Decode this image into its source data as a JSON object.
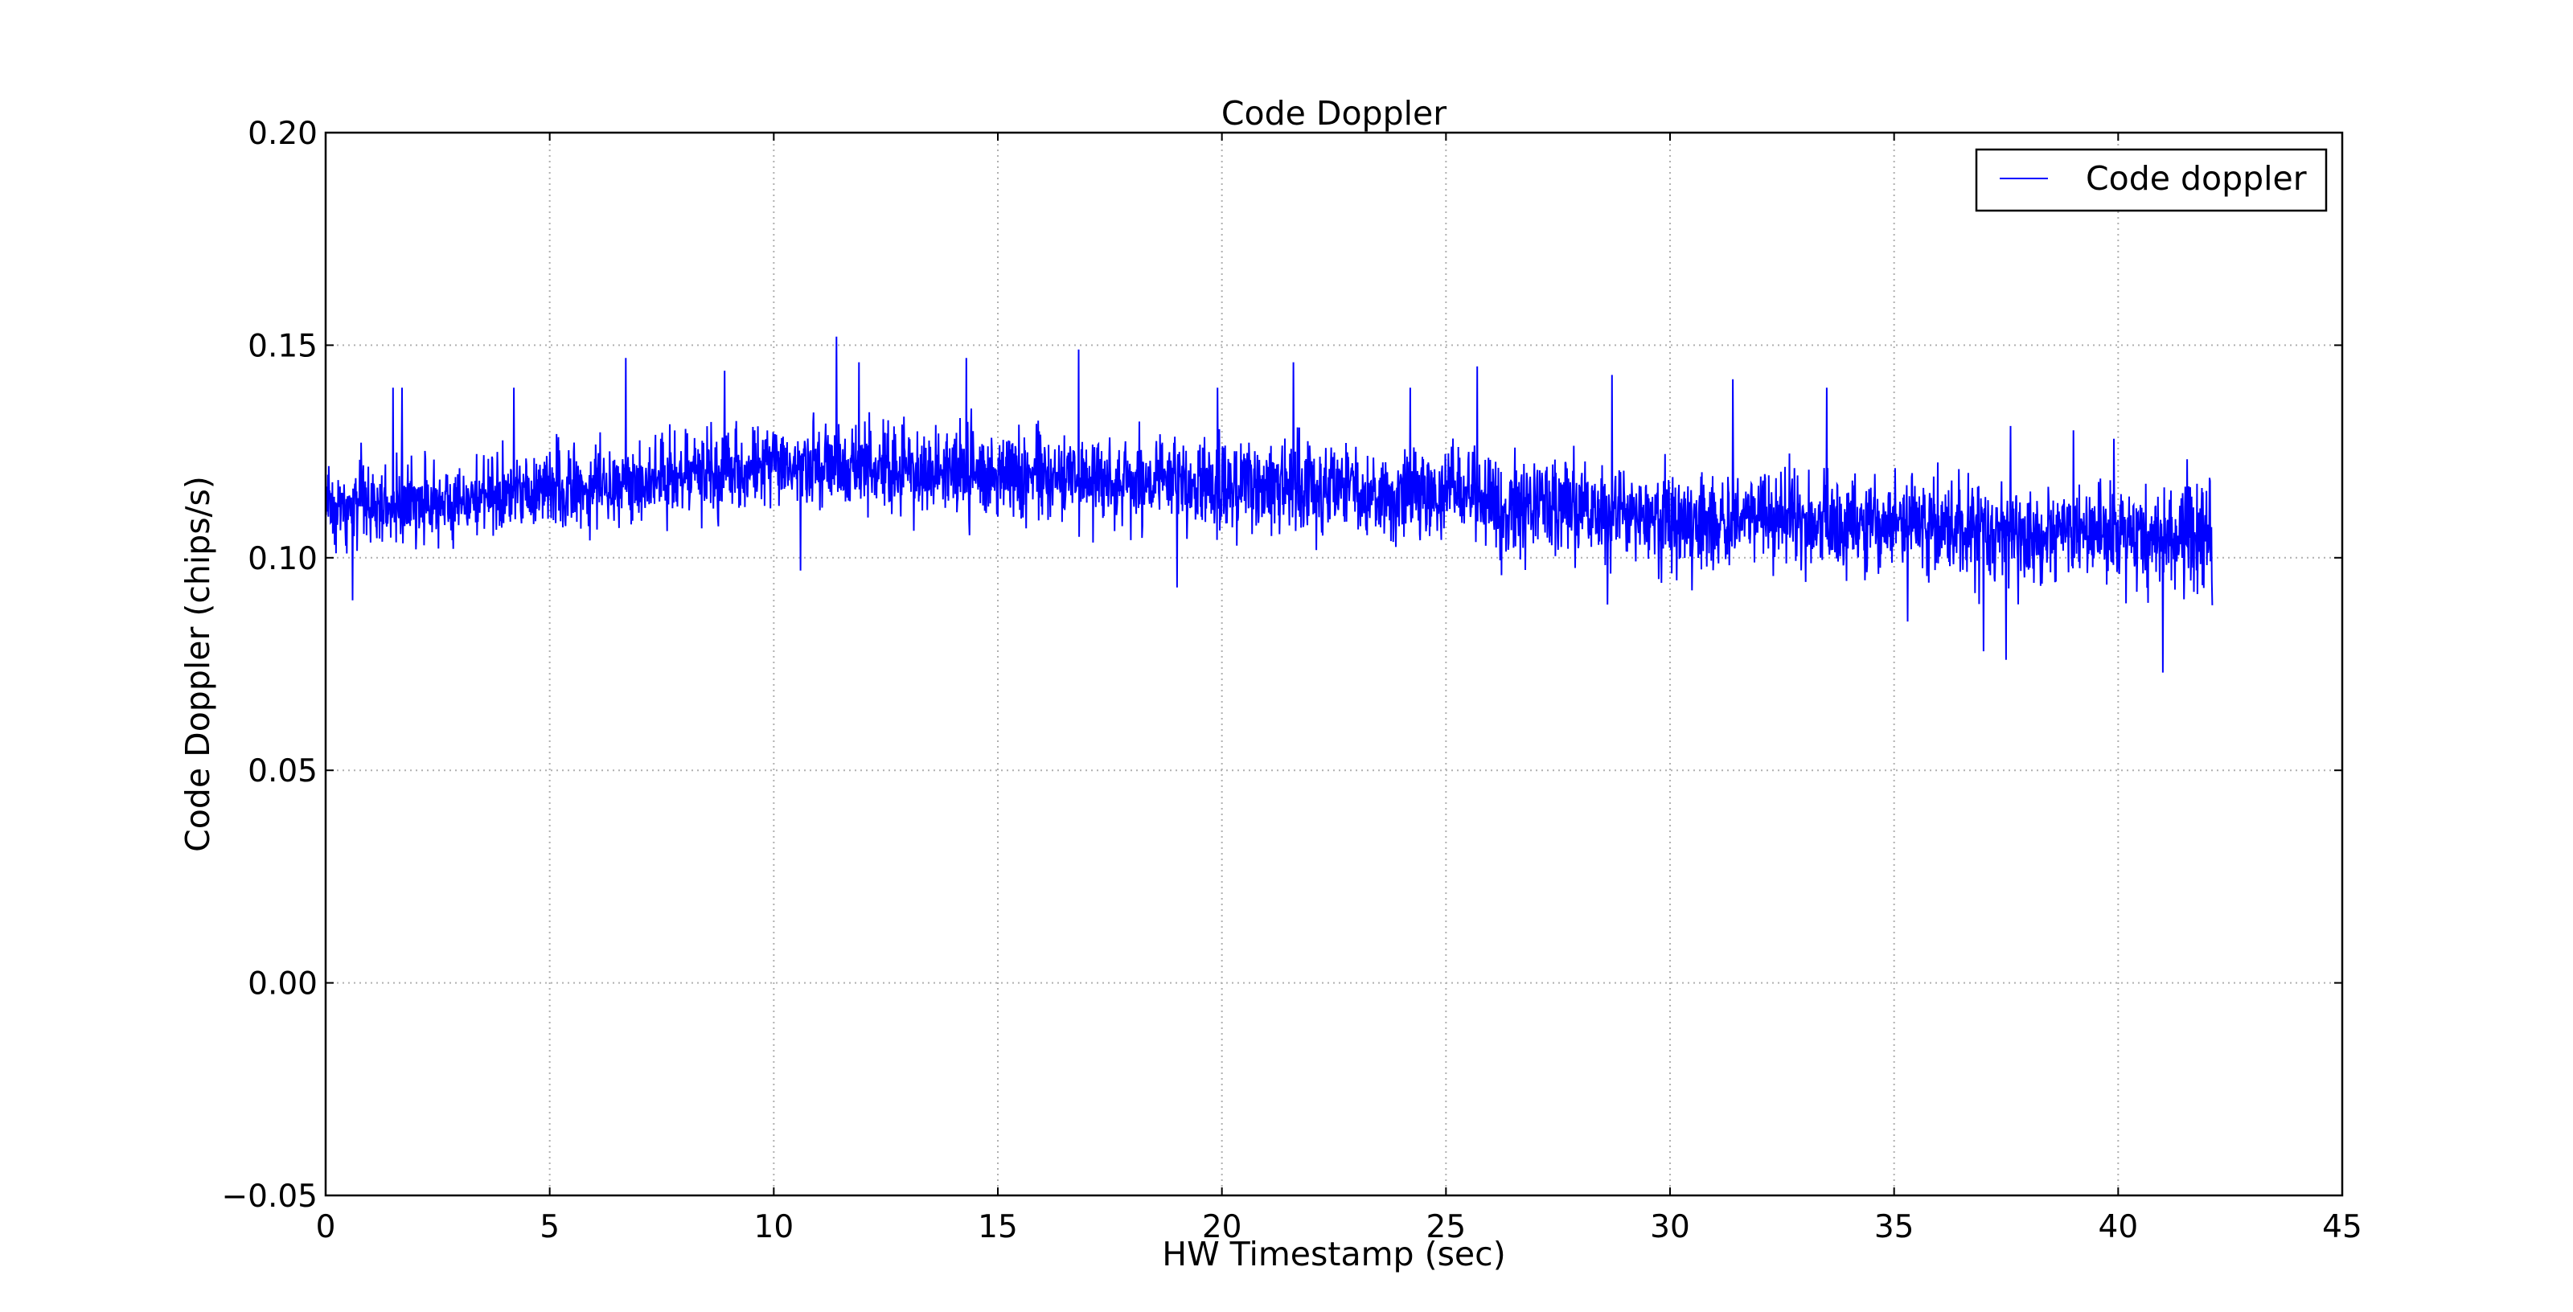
{
  "chart_data": {
    "type": "line",
    "title": "Code Doppler",
    "xlabel": "HW Timestamp (sec)",
    "ylabel": "Code Doppler (chips/s)",
    "xlim": [
      0,
      45
    ],
    "ylim": [
      -0.05,
      0.2
    ],
    "xticks": [
      0,
      5,
      10,
      15,
      20,
      25,
      30,
      35,
      40,
      45
    ],
    "xtick_labels": [
      "0",
      "5",
      "10",
      "15",
      "20",
      "25",
      "30",
      "35",
      "40",
      "45"
    ],
    "yticks": [
      -0.05,
      0.0,
      0.05,
      0.1,
      0.15,
      0.2
    ],
    "ytick_labels": [
      "−0.05",
      "0.00",
      "0.05",
      "0.10",
      "0.15",
      "0.20"
    ],
    "grid": true,
    "legend": {
      "position": "top-right",
      "entries": [
        "Code doppler"
      ]
    },
    "series": [
      {
        "name": "Code doppler",
        "color": "#0000ff",
        "x_start": 0,
        "x_end": 42.1,
        "trend": [
          [
            0,
            0.112
          ],
          [
            2.5,
            0.113
          ],
          [
            5,
            0.116
          ],
          [
            7.5,
            0.119
          ],
          [
            10,
            0.121
          ],
          [
            12.5,
            0.121
          ],
          [
            15,
            0.12
          ],
          [
            17.5,
            0.118
          ],
          [
            20,
            0.117
          ],
          [
            22.5,
            0.116
          ],
          [
            25,
            0.115
          ],
          [
            27.5,
            0.112
          ],
          [
            30,
            0.109
          ],
          [
            32.5,
            0.109
          ],
          [
            35,
            0.108
          ],
          [
            37.5,
            0.106
          ],
          [
            40,
            0.105
          ],
          [
            42.1,
            0.105
          ]
        ],
        "spikes": [
          [
            1.5,
            0.14
          ],
          [
            1.7,
            0.14
          ],
          [
            4.2,
            0.14
          ],
          [
            6.7,
            0.147
          ],
          [
            8.9,
            0.144
          ],
          [
            11.4,
            0.152
          ],
          [
            11.9,
            0.146
          ],
          [
            14.3,
            0.147
          ],
          [
            16.8,
            0.149
          ],
          [
            19.9,
            0.14
          ],
          [
            21.6,
            0.146
          ],
          [
            24.2,
            0.14
          ],
          [
            25.7,
            0.145
          ],
          [
            28.7,
            0.143
          ],
          [
            31.4,
            0.142
          ],
          [
            33.5,
            0.14
          ],
          [
            37.6,
            0.131
          ],
          [
            39.0,
            0.13
          ],
          [
            39.9,
            0.128
          ],
          [
            37.5,
            0.076
          ],
          [
            41.0,
            0.073
          ],
          [
            0.6,
            0.09
          ],
          [
            10.6,
            0.097
          ],
          [
            19.0,
            0.093
          ],
          [
            28.6,
            0.089
          ],
          [
            35.3,
            0.085
          ],
          [
            37.0,
            0.078
          ]
        ]
      }
    ]
  }
}
